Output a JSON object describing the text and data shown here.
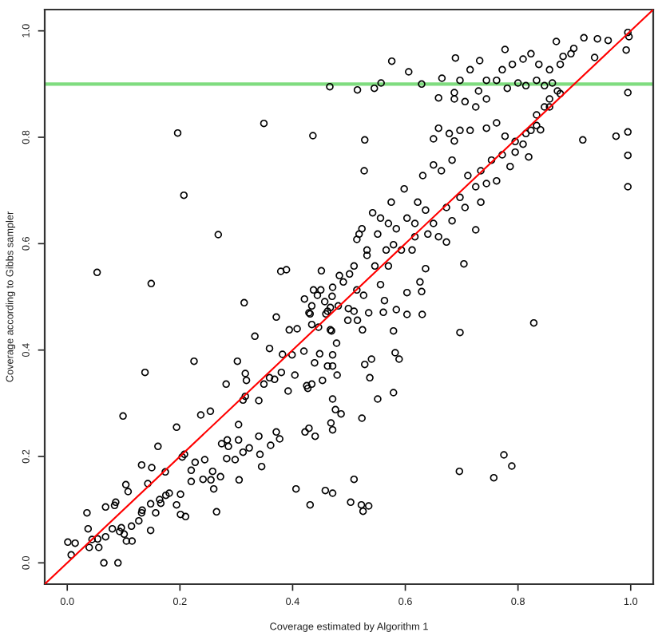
{
  "chart_data": {
    "type": "scatter",
    "xlabel": "Coverage estimated by Algorithm 1",
    "ylabel": "Coverage according to Gibbs sampler",
    "xlim": [
      -0.04,
      1.04
    ],
    "ylim": [
      -0.04,
      1.04
    ],
    "xticks": [
      {
        "value": 0,
        "label": "0.0"
      },
      0.2,
      0.4,
      0.6,
      0.8,
      {
        "value": 1,
        "label": "1.0"
      }
    ],
    "yticks": [
      {
        "value": 0,
        "label": "0.0"
      },
      0.2,
      0.4,
      0.6,
      0.8,
      {
        "value": 1,
        "label": "1.0"
      }
    ],
    "ref_lines": [
      {
        "axis": "y",
        "value": 0.9,
        "color": "#7fdc7f"
      }
    ],
    "series": [
      {
        "color": "#000000",
        "marker": "circle",
        "x": [
          0.466,
          0.196,
          0.349,
          0.436,
          0.207,
          0.268,
          0.053,
          0.149,
          0.379,
          0.389,
          0.451,
          0.314,
          0.371,
          0.437,
          0.45,
          0.444,
          0.47,
          0.421,
          0.457,
          0.434,
          0.467,
          0.431,
          0.459,
          0.515,
          0.545,
          0.557,
          0.576,
          0.606,
          0.629,
          0.665,
          0.689,
          0.732,
          0.777,
          0.868,
          0.917,
          0.941,
          0.96,
          0.899,
          0.88,
          0.936,
          0.995,
          0.997,
          0.992,
          0.995,
          0.995,
          0.995,
          0.995,
          0.974,
          0.915,
          0.84,
          0.819,
          0.786,
          0.762,
          0.725,
          0.704,
          0.528,
          0.527,
          0.687,
          0.659,
          0.483,
          0.501,
          0.514,
          0.526,
          0.532,
          0.546,
          0.556,
          0.563,
          0.584,
          0.603,
          0.629,
          0.626,
          0.636,
          0.556,
          0.542,
          0.57,
          0.584,
          0.514,
          0.523,
          0.575,
          0.598,
          0.603,
          0.622,
          0.64,
          0.659,
          0.673,
          0.683,
          0.706,
          0.734,
          0.744,
          0.631,
          0.65,
          0.664,
          0.683,
          0.687,
          0.659,
          0.65,
          0.678,
          0.697,
          0.715,
          0.744,
          0.762,
          0.777,
          0.795,
          0.809,
          0.823,
          0.833,
          0.847,
          0.687,
          0.706,
          0.725,
          0.744,
          0.73,
          0.744,
          0.762,
          0.781,
          0.8,
          0.814,
          0.833,
          0.847,
          0.861,
          0.87,
          0.856,
          0.772,
          0.79,
          0.809,
          0.823,
          0.837,
          0.856,
          0.875,
          0.894,
          0.715,
          0.697,
          0.499,
          0.481,
          0.518,
          0.532,
          0.551,
          0.566,
          0.579,
          0.509,
          0.49,
          0.471,
          0.57,
          0.593,
          0.612,
          0.617,
          0.603,
          0.63,
          0.772,
          0.795,
          0.814,
          0.833,
          0.856,
          0.875,
          0.753,
          0.734,
          0.725,
          0.697,
          0.711,
          0.673,
          0.65,
          0.636,
          0.617,
          0.001,
          0.014,
          0.007,
          0.035,
          0.037,
          0.039,
          0.044,
          0.054,
          0.056,
          0.065,
          0.09,
          0.068,
          0.068,
          0.084,
          0.086,
          0.08,
          0.093,
          0.096,
          0.101,
          0.105,
          0.115,
          0.099,
          0.104,
          0.108,
          0.114,
          0.127,
          0.132,
          0.133,
          0.138,
          0.132,
          0.143,
          0.148,
          0.148,
          0.15,
          0.157,
          0.161,
          0.164,
          0.166,
          0.174,
          0.175,
          0.181,
          0.194,
          0.194,
          0.201,
          0.204,
          0.208,
          0.201,
          0.21,
          0.22,
          0.22,
          0.225,
          0.227,
          0.237,
          0.241,
          0.244,
          0.254,
          0.255,
          0.258,
          0.26,
          0.265,
          0.272,
          0.274,
          0.284,
          0.286,
          0.283,
          0.282,
          0.298,
          0.302,
          0.304,
          0.305,
          0.304,
          0.312,
          0.312,
          0.316,
          0.316,
          0.318,
          0.323,
          0.333,
          0.34,
          0.34,
          0.342,
          0.345,
          0.349,
          0.359,
          0.361,
          0.368,
          0.359,
          0.371,
          0.377,
          0.38,
          0.382,
          0.392,
          0.394,
          0.399,
          0.404,
          0.406,
          0.408,
          0.42,
          0.422,
          0.425,
          0.429,
          0.427,
          0.431,
          0.434,
          0.439,
          0.44,
          0.434,
          0.446,
          0.448,
          0.453,
          0.458,
          0.462,
          0.467,
          0.471,
          0.471,
          0.468,
          0.471,
          0.462,
          0.429,
          0.509,
          0.535,
          0.561,
          0.498,
          0.515,
          0.524,
          0.579,
          0.697,
          0.828,
          0.469,
          0.478,
          0.471,
          0.479,
          0.54,
          0.528,
          0.582,
          0.589,
          0.537,
          0.551,
          0.579,
          0.476,
          0.486,
          0.523,
          0.471,
          0.775,
          0.789,
          0.696,
          0.757,
          0.509,
          0.503,
          0.522,
          0.535,
          0.525
        ],
        "values": [
          0.895,
          0.808,
          0.826,
          0.803,
          0.691,
          0.617,
          0.546,
          0.525,
          0.548,
          0.551,
          0.549,
          0.489,
          0.462,
          0.513,
          0.513,
          0.503,
          0.501,
          0.496,
          0.491,
          0.483,
          0.48,
          0.468,
          0.468,
          0.889,
          0.892,
          0.902,
          0.943,
          0.923,
          0.9,
          0.911,
          0.949,
          0.944,
          0.965,
          0.98,
          0.987,
          0.985,
          0.982,
          0.967,
          0.952,
          0.95,
          0.997,
          0.989,
          0.964,
          0.884,
          0.81,
          0.766,
          0.707,
          0.802,
          0.795,
          0.814,
          0.763,
          0.745,
          0.718,
          0.626,
          0.562,
          0.795,
          0.737,
          0.884,
          0.874,
          0.54,
          0.543,
          0.513,
          0.503,
          0.578,
          0.558,
          0.523,
          0.493,
          0.476,
          0.508,
          0.51,
          0.528,
          0.553,
          0.648,
          0.658,
          0.638,
          0.628,
          0.608,
          0.628,
          0.678,
          0.703,
          0.648,
          0.678,
          0.618,
          0.613,
          0.603,
          0.643,
          0.668,
          0.678,
          0.713,
          0.728,
          0.748,
          0.737,
          0.757,
          0.793,
          0.817,
          0.797,
          0.807,
          0.813,
          0.813,
          0.817,
          0.827,
          0.802,
          0.792,
          0.787,
          0.813,
          0.842,
          0.857,
          0.872,
          0.867,
          0.857,
          0.872,
          0.887,
          0.907,
          0.907,
          0.892,
          0.902,
          0.897,
          0.907,
          0.897,
          0.902,
          0.887,
          0.872,
          0.927,
          0.937,
          0.947,
          0.957,
          0.937,
          0.927,
          0.937,
          0.957,
          0.927,
          0.907,
          0.478,
          0.483,
          0.618,
          0.588,
          0.618,
          0.588,
          0.598,
          0.558,
          0.528,
          0.518,
          0.558,
          0.588,
          0.588,
          0.613,
          0.467,
          0.467,
          0.767,
          0.772,
          0.807,
          0.822,
          0.857,
          0.882,
          0.757,
          0.737,
          0.707,
          0.687,
          0.728,
          0.668,
          0.638,
          0.663,
          0.638,
          0.039,
          0.037,
          0.015,
          0.094,
          0.064,
          0.029,
          0.044,
          0.045,
          0.029,
          0.0,
          0.0,
          0.049,
          0.105,
          0.108,
          0.114,
          0.064,
          0.059,
          0.066,
          0.054,
          0.041,
          0.041,
          0.276,
          0.147,
          0.134,
          0.069,
          0.079,
          0.094,
          0.099,
          0.358,
          0.184,
          0.149,
          0.111,
          0.061,
          0.179,
          0.094,
          0.219,
          0.119,
          0.112,
          0.171,
          0.127,
          0.131,
          0.109,
          0.255,
          0.129,
          0.199,
          0.204,
          0.091,
          0.087,
          0.153,
          0.174,
          0.379,
          0.189,
          0.278,
          0.157,
          0.194,
          0.285,
          0.156,
          0.172,
          0.139,
          0.096,
          0.162,
          0.224,
          0.231,
          0.219,
          0.196,
          0.336,
          0.194,
          0.379,
          0.26,
          0.156,
          0.231,
          0.208,
          0.306,
          0.313,
          0.356,
          0.343,
          0.216,
          0.426,
          0.305,
          0.238,
          0.204,
          0.181,
          0.336,
          0.348,
          0.221,
          0.345,
          0.403,
          0.246,
          0.233,
          0.358,
          0.392,
          0.323,
          0.438,
          0.391,
          0.353,
          0.139,
          0.44,
          0.398,
          0.246,
          0.333,
          0.253,
          0.328,
          0.109,
          0.448,
          0.376,
          0.238,
          0.336,
          0.443,
          0.393,
          0.343,
          0.136,
          0.37,
          0.438,
          0.131,
          0.308,
          0.263,
          0.391,
          0.473,
          0.47,
          0.473,
          0.47,
          0.471,
          0.456,
          0.456,
          0.438,
          0.436,
          0.433,
          0.451,
          0.436,
          0.413,
          0.37,
          0.353,
          0.383,
          0.373,
          0.395,
          0.383,
          0.348,
          0.308,
          0.32,
          0.288,
          0.28,
          0.272,
          0.25,
          0.203,
          0.182,
          0.172,
          0.16,
          0.157,
          0.114,
          0.109,
          0.107,
          0.097
        ]
      },
      {
        "type": "line",
        "color": "#ff0000",
        "x": [
          -0.04,
          1.04
        ],
        "values": [
          -0.04,
          1.04
        ]
      }
    ]
  }
}
